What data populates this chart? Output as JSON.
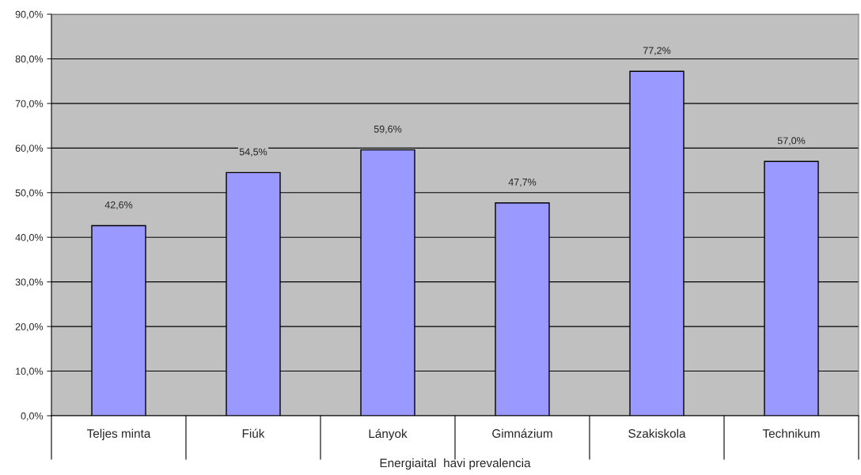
{
  "chart_data": {
    "type": "bar",
    "xlabel": "Energiaital  havi prevalencia",
    "categories": [
      "Teljes minta",
      "Fiúk",
      "Lányok",
      "Gimnázium",
      "Szakiskola",
      "Technikum"
    ],
    "values": [
      42.6,
      54.5,
      59.6,
      47.7,
      77.2,
      57.0
    ],
    "value_labels": [
      "42,6%",
      "54,5%",
      "59,6%",
      "47,7%",
      "77,2%",
      "57,0%"
    ],
    "color": "#9999ff",
    "ylim": [
      0,
      90
    ],
    "yticks": [
      {
        "value": 0,
        "label": "0,0%"
      },
      {
        "value": 10,
        "label": "10,0%"
      },
      {
        "value": 20,
        "label": "20,0%"
      },
      {
        "value": 30,
        "label": "30,0%"
      },
      {
        "value": 40,
        "label": "40,0%"
      },
      {
        "value": 50,
        "label": "50,0%"
      },
      {
        "value": 60,
        "label": "60,0%"
      },
      {
        "value": 70,
        "label": "70,0%"
      },
      {
        "value": 80,
        "label": "80,0%"
      },
      {
        "value": 90,
        "label": "90,0%"
      }
    ],
    "grid": "y",
    "legend": false
  }
}
